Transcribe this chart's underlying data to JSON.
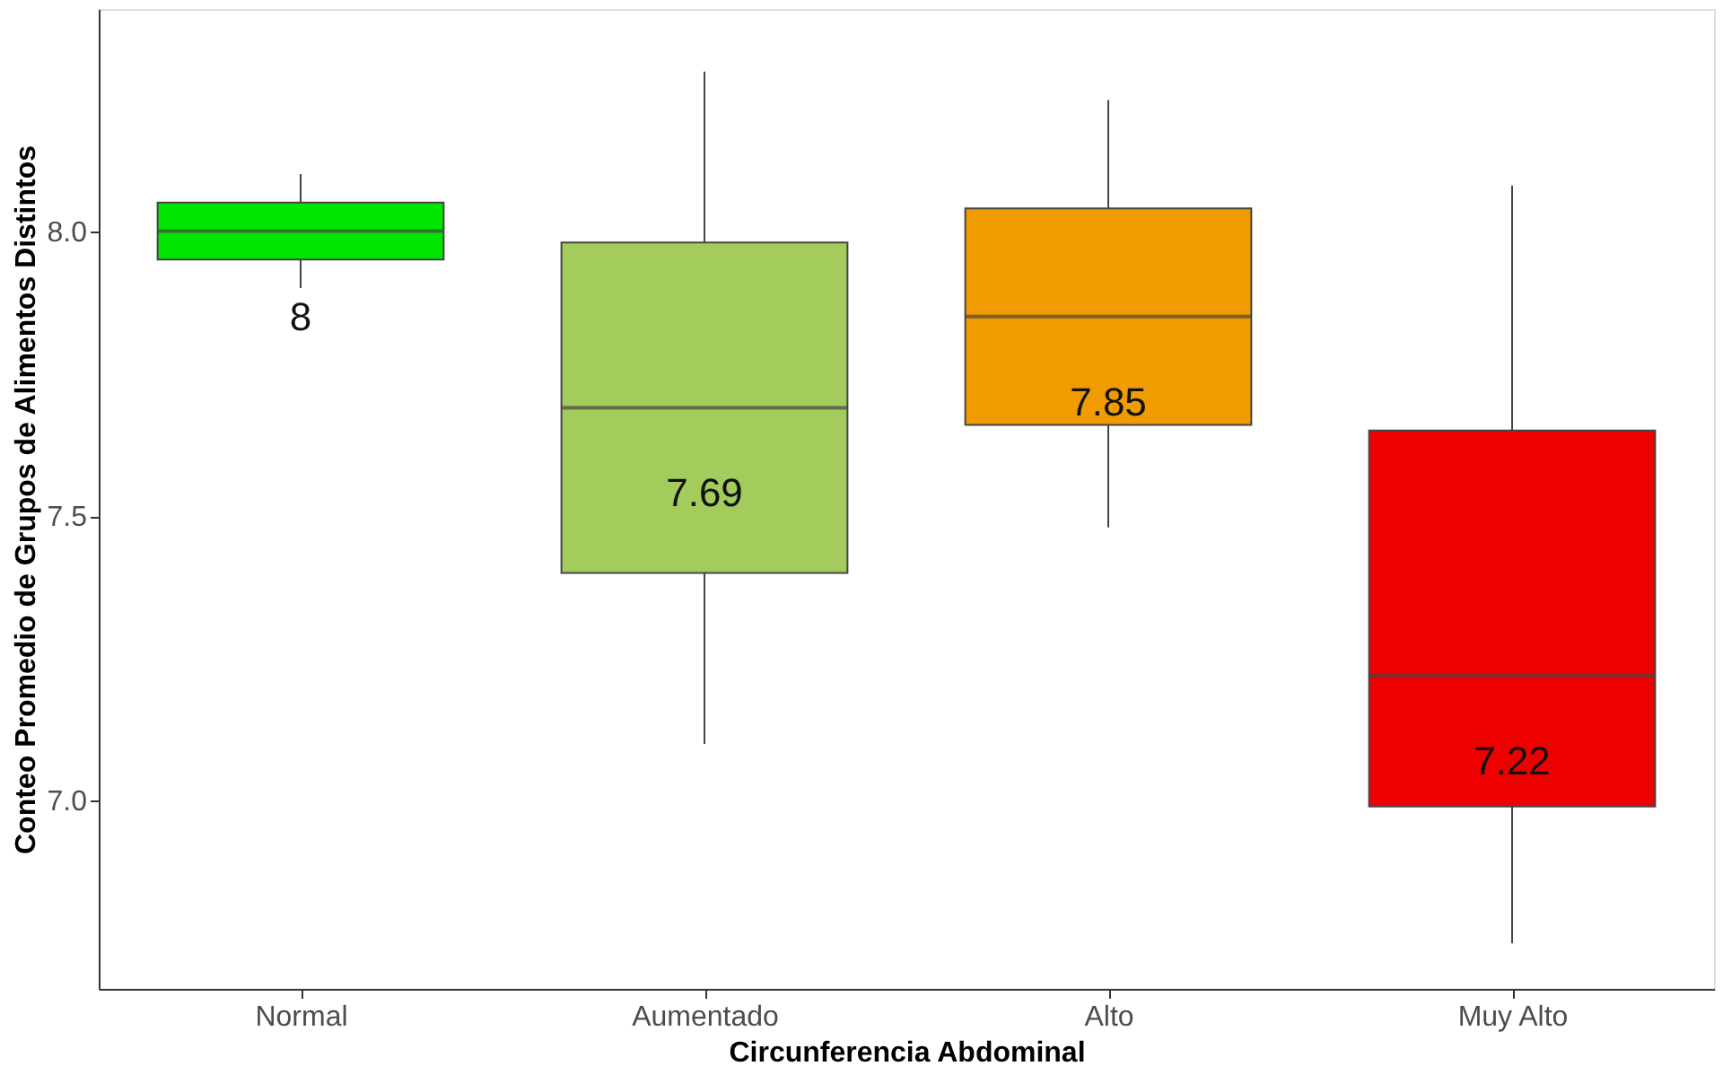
{
  "chart_data": {
    "type": "box",
    "xlabel": "Circunferencia Abdominal",
    "ylabel": "Conteo Promedio de Grupos de Alimentos Distintos",
    "categories": [
      "Normal",
      "Aumentado",
      "Alto",
      "Muy Alto"
    ],
    "colors": [
      "#00e600",
      "#a3cc5c",
      "#f09c00",
      "#ee0000"
    ],
    "boxes": [
      {
        "low": 7.9,
        "q1": 7.95,
        "median": 8.0,
        "q3": 8.05,
        "high": 8.1
      },
      {
        "low": 7.1,
        "q1": 7.4,
        "median": 7.69,
        "q3": 7.98,
        "high": 8.28
      },
      {
        "low": 7.48,
        "q1": 7.66,
        "median": 7.85,
        "q3": 8.04,
        "high": 8.23
      },
      {
        "low": 6.75,
        "q1": 6.99,
        "median": 7.22,
        "q3": 7.65,
        "high": 8.08
      }
    ],
    "annotations": [
      {
        "text": "8",
        "x": "Normal",
        "y": 8.0
      },
      {
        "text": "7.69",
        "x": "Aumentado",
        "y": 7.69
      },
      {
        "text": "7.85",
        "x": "Alto",
        "y": 7.85
      },
      {
        "text": "7.22",
        "x": "Muy Alto",
        "y": 7.22
      }
    ],
    "ylim": [
      6.67,
      8.39
    ],
    "yticks": [
      {
        "value": 7.0,
        "label": "7.0"
      },
      {
        "value": 7.5,
        "label": "7.5"
      },
      {
        "value": 8.0,
        "label": "8.0"
      }
    ],
    "grid": false
  }
}
